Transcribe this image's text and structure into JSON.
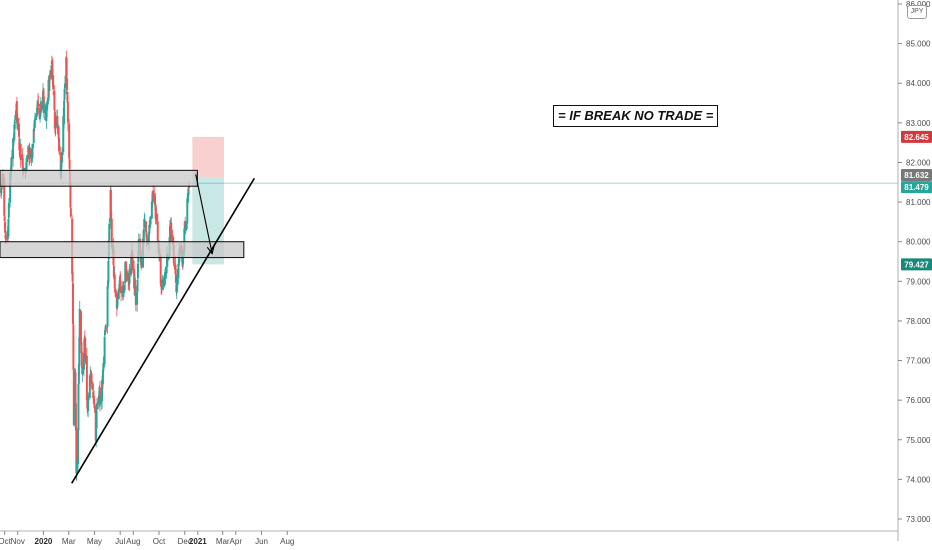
{
  "colors": {
    "up": "#26a69a",
    "down": "#ef5350",
    "zone_fill": "#c8c8c8",
    "zone_border": "#1a1a1a",
    "stop_fill": "#f8c8c8",
    "target_fill": "#bfe3e0",
    "last_price_line": "#26a69a",
    "tag_red": "#d0393e",
    "tag_gray": "#787878",
    "tag_green": "#26a69a",
    "tag_teal": "#16897a"
  },
  "symbol_tag": "JPY",
  "annotation": "= IF BREAK NO TRADE =",
  "price_tags": [
    {
      "value": "82.645",
      "color": "tag_red"
    },
    {
      "value": "81.632",
      "color": "tag_gray"
    },
    {
      "value": "81.479",
      "color": "tag_green"
    },
    {
      "value": "79.427",
      "color": "tag_teal"
    }
  ],
  "chart_data": {
    "type": "candlestick",
    "instrument": "JPY",
    "ylim": [
      72.8,
      86.2
    ],
    "y_ticks": [
      {
        "value": 73,
        "label": "73.000"
      },
      {
        "value": 74,
        "label": "74.000"
      },
      {
        "value": 75,
        "label": "75.000"
      },
      {
        "value": 76,
        "label": "76.000"
      },
      {
        "value": 77,
        "label": "77.000"
      },
      {
        "value": 78,
        "label": "78.000"
      },
      {
        "value": 79,
        "label": "79.000"
      },
      {
        "value": 80,
        "label": "80.000"
      },
      {
        "value": 81,
        "label": "81.000"
      },
      {
        "value": 82,
        "label": "82.000"
      },
      {
        "value": 83,
        "label": "83.000"
      },
      {
        "value": 84,
        "label": "84.000"
      },
      {
        "value": 85,
        "label": "85.000"
      },
      {
        "value": 86,
        "label": "86.000"
      }
    ],
    "x_ticks": [
      {
        "date": "2019-10-01",
        "label": "Oct",
        "bold": false
      },
      {
        "date": "2019-11-01",
        "label": "Nov",
        "bold": false
      },
      {
        "date": "2020-01-01",
        "label": "2020",
        "bold": true
      },
      {
        "date": "2020-03-01",
        "label": "Mar",
        "bold": false
      },
      {
        "date": "2020-05-01",
        "label": "May",
        "bold": false
      },
      {
        "date": "2020-07-01",
        "label": "Jul",
        "bold": false
      },
      {
        "date": "2020-08-01",
        "label": "Aug",
        "bold": false
      },
      {
        "date": "2020-10-01",
        "label": "Oct",
        "bold": false
      },
      {
        "date": "2020-12-01",
        "label": "Dec",
        "bold": false
      },
      {
        "date": "2021-01-01",
        "label": "2021",
        "bold": true
      },
      {
        "date": "2021-03-01",
        "label": "Mar",
        "bold": false
      },
      {
        "date": "2021-04-01",
        "label": "Apr",
        "bold": false
      },
      {
        "date": "2021-06-01",
        "label": "Jun",
        "bold": false
      },
      {
        "date": "2021-08-01",
        "label": "Aug",
        "bold": false
      }
    ],
    "last_price": 81.479,
    "path_anchors": [
      [
        "2019-09-20",
        81.3
      ],
      [
        "2019-09-27",
        81.6
      ],
      [
        "2019-10-03",
        80.0
      ],
      [
        "2019-10-08",
        80.1
      ],
      [
        "2019-10-15",
        81.8
      ],
      [
        "2019-10-22",
        82.6
      ],
      [
        "2019-10-29",
        83.3
      ],
      [
        "2019-11-05",
        82.3
      ],
      [
        "2019-11-12",
        82.0
      ],
      [
        "2019-11-19",
        81.9
      ],
      [
        "2019-11-26",
        82.3
      ],
      [
        "2019-12-03",
        82.1
      ],
      [
        "2019-12-10",
        82.9
      ],
      [
        "2019-12-17",
        83.4
      ],
      [
        "2019-12-24",
        83.2
      ],
      [
        "2019-12-31",
        83.6
      ],
      [
        "2020-01-07",
        83.1
      ],
      [
        "2020-01-14",
        84.0
      ],
      [
        "2020-01-21",
        84.4
      ],
      [
        "2020-01-28",
        83.0
      ],
      [
        "2020-02-04",
        83.0
      ],
      [
        "2020-02-11",
        81.8
      ],
      [
        "2020-02-18",
        83.2
      ],
      [
        "2020-02-24",
        84.6
      ],
      [
        "2020-02-28",
        83.2
      ],
      [
        "2020-03-04",
        81.4
      ],
      [
        "2020-03-07",
        80.2
      ],
      [
        "2020-03-10",
        79.0
      ],
      [
        "2020-03-13",
        75.5
      ],
      [
        "2020-03-16",
        76.8
      ],
      [
        "2020-03-19",
        74.2
      ],
      [
        "2020-03-23",
        75.5
      ],
      [
        "2020-03-27",
        78.5
      ],
      [
        "2020-04-02",
        76.5
      ],
      [
        "2020-04-08",
        77.5
      ],
      [
        "2020-04-14",
        75.8
      ],
      [
        "2020-04-21",
        76.6
      ],
      [
        "2020-04-28",
        76.2
      ],
      [
        "2020-05-04",
        75.1
      ],
      [
        "2020-05-10",
        76.3
      ],
      [
        "2020-05-17",
        76.0
      ],
      [
        "2020-05-24",
        77.3
      ],
      [
        "2020-05-31",
        78.3
      ],
      [
        "2020-06-07",
        81.6
      ],
      [
        "2020-06-11",
        80.0
      ],
      [
        "2020-06-16",
        79.0
      ],
      [
        "2020-06-23",
        78.4
      ],
      [
        "2020-06-30",
        79.0
      ],
      [
        "2020-07-07",
        78.6
      ],
      [
        "2020-07-14",
        79.4
      ],
      [
        "2020-07-21",
        79.0
      ],
      [
        "2020-07-28",
        79.7
      ],
      [
        "2020-08-03",
        79.0
      ],
      [
        "2020-08-08",
        78.3
      ],
      [
        "2020-08-14",
        79.9
      ],
      [
        "2020-08-21",
        79.4
      ],
      [
        "2020-08-28",
        80.6
      ],
      [
        "2020-09-04",
        79.8
      ],
      [
        "2020-09-11",
        80.6
      ],
      [
        "2020-09-17",
        81.4
      ],
      [
        "2020-09-24",
        80.6
      ],
      [
        "2020-09-30",
        79.8
      ],
      [
        "2020-10-07",
        78.9
      ],
      [
        "2020-10-14",
        79.1
      ],
      [
        "2020-10-21",
        79.6
      ],
      [
        "2020-10-28",
        80.3
      ],
      [
        "2020-11-02",
        80.2
      ],
      [
        "2020-11-06",
        79.4
      ],
      [
        "2020-11-11",
        78.8
      ],
      [
        "2020-11-16",
        79.6
      ],
      [
        "2020-11-21",
        79.9
      ],
      [
        "2020-11-26",
        79.4
      ],
      [
        "2020-12-01",
        80.4
      ],
      [
        "2020-12-05",
        80.6
      ],
      [
        "2020-12-09",
        81.2
      ],
      [
        "2020-12-11",
        81.45
      ]
    ],
    "zones": [
      {
        "date_from": "2019-09-20",
        "date_to": "2020-12-31",
        "y_top": 81.8,
        "y_bottom": 81.4
      },
      {
        "date_from": "2019-09-20",
        "date_to": "2021-04-20",
        "y_top": 80.0,
        "y_bottom": 79.6
      }
    ],
    "trendline": {
      "from": [
        "2020-03-08",
        73.9
      ],
      "to": [
        "2021-05-15",
        81.6
      ]
    },
    "arrow": {
      "from": [
        "2020-12-27",
        81.7
      ],
      "to": [
        "2021-02-04",
        79.7
      ]
    },
    "position": {
      "date_from": "2020-12-19",
      "date_to": "2021-03-04",
      "stop": 82.645,
      "entry": 81.632,
      "target": 79.427
    }
  }
}
